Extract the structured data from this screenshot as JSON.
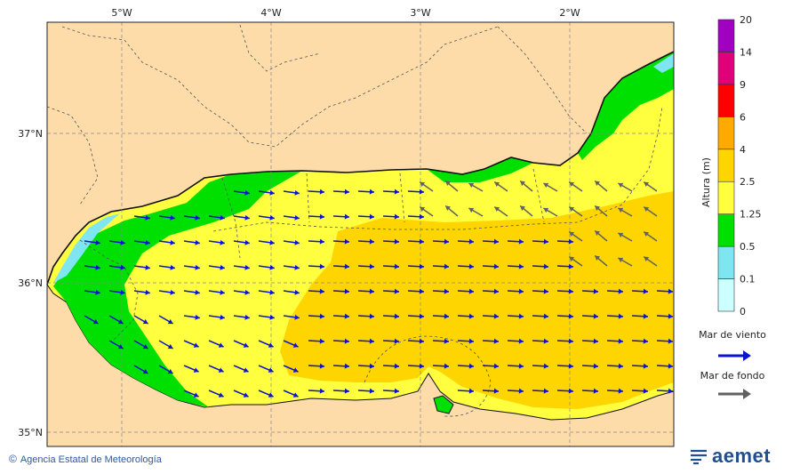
{
  "map": {
    "lon_labels": [
      "5°W",
      "4°W",
      "3°W",
      "2°W"
    ],
    "lat_labels": [
      "37°N",
      "36°N",
      "35°N"
    ]
  },
  "legend": {
    "title": "Altura (m)",
    "levels": [
      "0",
      "0.1",
      "0.5",
      "1.25",
      "2.5",
      "4",
      "6",
      "9",
      "14",
      "20"
    ],
    "colors": [
      "#ccffff",
      "#7fe5f0",
      "#00e000",
      "#ffff40",
      "#ffd500",
      "#ffaa00",
      "#ff0000",
      "#e0007a",
      "#a000c0"
    ],
    "wind_sea_label": "Mar de viento",
    "swell_label": "Mar de fondo",
    "wind_sea_color": "#0a14d0",
    "swell_color": "#606060"
  },
  "footer": {
    "credit": "Agencia Estatal de Meteorología",
    "logo_text": "aemet"
  }
}
